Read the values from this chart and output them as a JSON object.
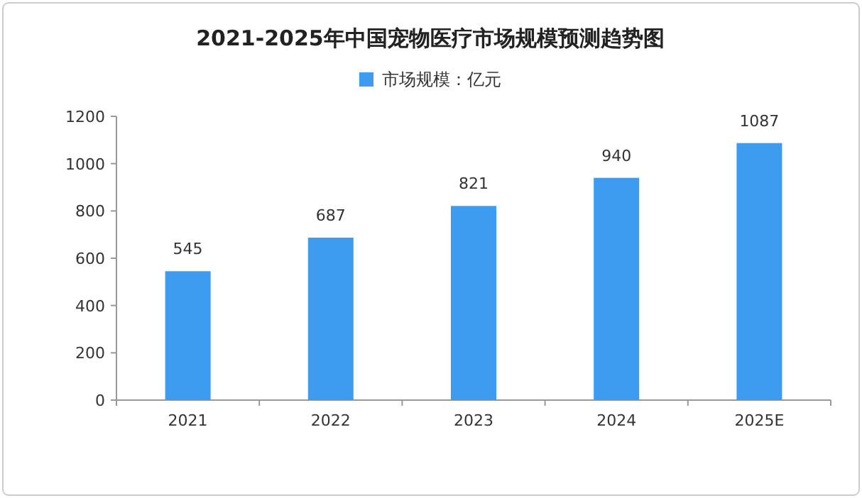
{
  "chart_data": {
    "type": "bar",
    "title": "2021-2025年中国宠物医疗市场规模预测趋势图",
    "categories": [
      "2021",
      "2022",
      "2023",
      "2024",
      "2025E"
    ],
    "series": [
      {
        "name": "市场规模：亿元",
        "color": "#3d9cf0",
        "values": [
          545,
          687,
          821,
          940,
          1087
        ]
      }
    ],
    "ylim": [
      0,
      1200
    ],
    "yticks": [
      0,
      200,
      400,
      600,
      800,
      1000,
      1200
    ],
    "data_labels": true,
    "legend": "top",
    "grid": false
  }
}
